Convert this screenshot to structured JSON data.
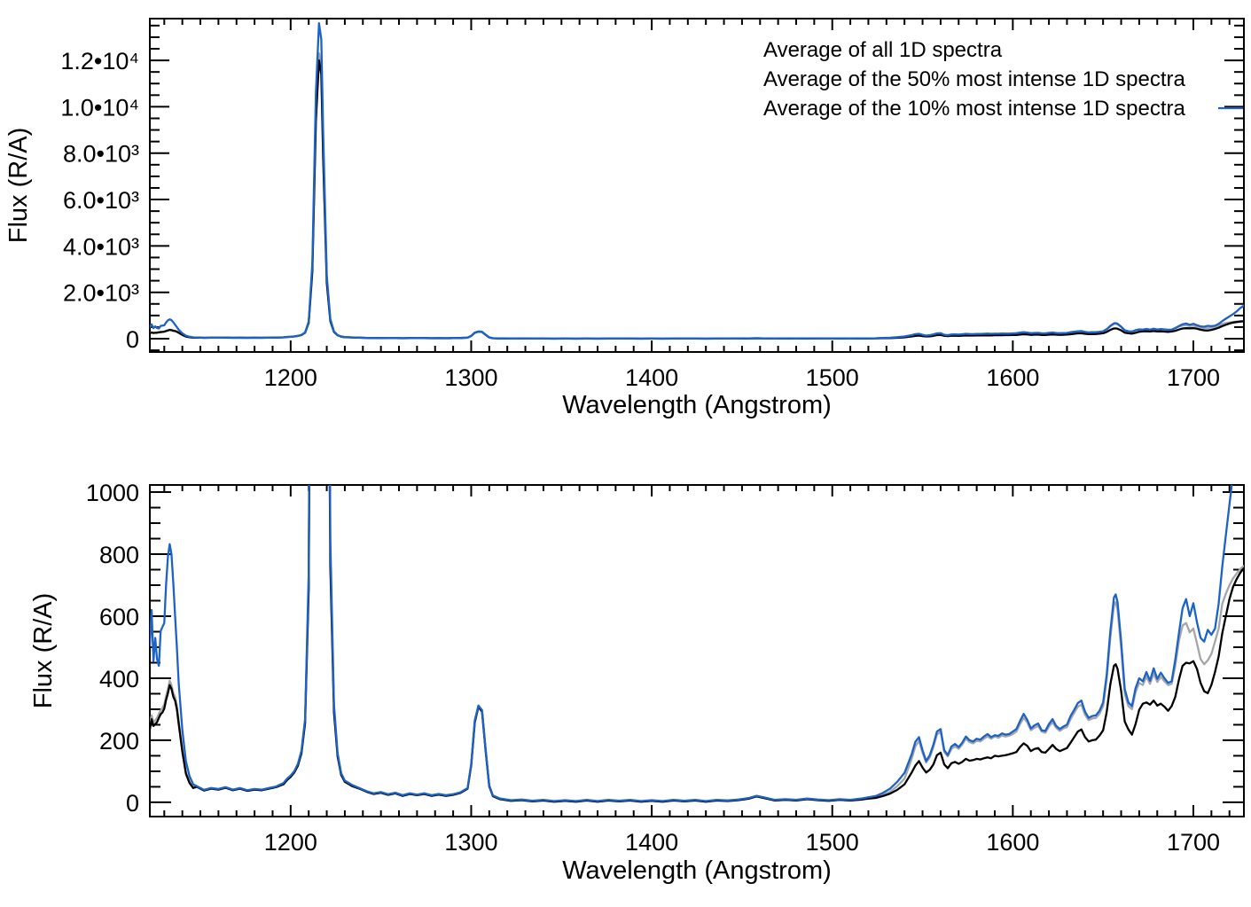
{
  "figure": {
    "background": "#ffffff"
  },
  "chart_data": {
    "type": "line",
    "title": "",
    "xlabel": "Wavelength (Angstrom)",
    "ylabel": "Flux (R/A)",
    "legend_position": "top-right-inside",
    "grid": false,
    "x_ticks": [
      1200,
      1300,
      1400,
      1500,
      1600,
      1700
    ],
    "x_minor_step": 10,
    "series": [
      {
        "name": "Average of all 1D spectra",
        "color": "#000000"
      },
      {
        "name": "Average of the 50% most intense 1D spectra",
        "color": "#a6a6a6"
      },
      {
        "name": "Average of the 10% most intense 1D spectra",
        "color": "#1b63c6"
      }
    ],
    "plots": [
      {
        "name": "full-scale-panel",
        "x_range": [
          1122,
          1728
        ],
        "y_range": [
          -573,
          13800
        ],
        "y_tick_values": [
          0,
          2000,
          4000,
          6000,
          8000,
          10000,
          12000
        ],
        "y_tick_labels": [
          "0",
          "2.0•10³",
          "4.0•10³",
          "6.0•10³",
          "8.0•10³",
          "1.0•10⁴",
          "1.2•10⁴"
        ],
        "y_minor_step": 500
      },
      {
        "name": "zoomed-panel",
        "x_range": [
          1122,
          1728
        ],
        "y_range": [
          -46,
          1023
        ],
        "y_tick_values": [
          0,
          200,
          400,
          600,
          800,
          1000
        ],
        "y_tick_labels": [
          "0",
          "200",
          "400",
          "600",
          "800",
          "1000"
        ],
        "y_minor_step": 50
      }
    ],
    "points_columns": [
      "wavelength_angstrom",
      "avg_all",
      "avg_50pct",
      "avg_10pct"
    ],
    "points": [
      [
        1120,
        225,
        240,
        590
      ],
      [
        1121,
        250,
        262,
        645
      ],
      [
        1122,
        235,
        250,
        505
      ],
      [
        1123,
        268,
        280,
        620
      ],
      [
        1124,
        246,
        258,
        455
      ],
      [
        1125,
        252,
        264,
        530
      ],
      [
        1126,
        258,
        272,
        462
      ],
      [
        1127,
        272,
        286,
        440
      ],
      [
        1128,
        284,
        296,
        552
      ],
      [
        1129,
        290,
        304,
        566
      ],
      [
        1130,
        302,
        316,
        578
      ],
      [
        1131,
        330,
        342,
        700
      ],
      [
        1132,
        352,
        366,
        792
      ],
      [
        1133,
        378,
        392,
        832
      ],
      [
        1134,
        366,
        378,
        800
      ],
      [
        1135,
        340,
        352,
        706
      ],
      [
        1136,
        328,
        340,
        600
      ],
      [
        1137,
        300,
        312,
        500
      ],
      [
        1138,
        252,
        262,
        382
      ],
      [
        1140,
        162,
        170,
        232
      ],
      [
        1142,
        92,
        98,
        132
      ],
      [
        1144,
        62,
        66,
        84
      ],
      [
        1146,
        46,
        50,
        58
      ],
      [
        1148,
        50,
        50,
        52
      ],
      [
        1152,
        38,
        38,
        40
      ],
      [
        1156,
        44,
        44,
        46
      ],
      [
        1160,
        41,
        41,
        43
      ],
      [
        1164,
        47,
        47,
        49
      ],
      [
        1168,
        39,
        39,
        41
      ],
      [
        1172,
        44,
        44,
        46
      ],
      [
        1176,
        37,
        37,
        39
      ],
      [
        1180,
        41,
        41,
        43
      ],
      [
        1184,
        39,
        39,
        41
      ],
      [
        1188,
        44,
        44,
        46
      ],
      [
        1192,
        49,
        49,
        51
      ],
      [
        1196,
        58,
        58,
        62
      ],
      [
        1198,
        72,
        72,
        76
      ],
      [
        1200,
        82,
        82,
        86
      ],
      [
        1202,
        96,
        96,
        100
      ],
      [
        1204,
        118,
        118,
        124
      ],
      [
        1206,
        158,
        158,
        166
      ],
      [
        1208,
        255,
        255,
        268
      ],
      [
        1210,
        690,
        700,
        740
      ],
      [
        1212,
        2900,
        3000,
        3250
      ],
      [
        1214,
        9400,
        9700,
        10600
      ],
      [
        1215.7,
        12000,
        12300,
        13600
      ],
      [
        1217,
        11400,
        11700,
        12900
      ],
      [
        1218,
        7800,
        8000,
        8900
      ],
      [
        1220,
        2400,
        2450,
        2700
      ],
      [
        1222,
        760,
        780,
        840
      ],
      [
        1224,
        290,
        295,
        315
      ],
      [
        1226,
        148,
        150,
        158
      ],
      [
        1228,
        88,
        90,
        94
      ],
      [
        1230,
        66,
        68,
        70
      ],
      [
        1234,
        52,
        54,
        56
      ],
      [
        1238,
        44,
        46,
        46
      ],
      [
        1242,
        34,
        34,
        36
      ],
      [
        1246,
        27,
        27,
        29
      ],
      [
        1250,
        31,
        31,
        33
      ],
      [
        1254,
        24,
        24,
        26
      ],
      [
        1258,
        29,
        29,
        31
      ],
      [
        1262,
        21,
        21,
        23
      ],
      [
        1266,
        27,
        27,
        29
      ],
      [
        1270,
        23,
        23,
        25
      ],
      [
        1274,
        27,
        27,
        29
      ],
      [
        1278,
        21,
        21,
        23
      ],
      [
        1282,
        25,
        25,
        27
      ],
      [
        1286,
        21,
        21,
        23
      ],
      [
        1290,
        24,
        24,
        26
      ],
      [
        1294,
        30,
        30,
        32
      ],
      [
        1298,
        44,
        44,
        46
      ],
      [
        1300,
        120,
        120,
        124
      ],
      [
        1302,
        258,
        258,
        264
      ],
      [
        1304,
        308,
        308,
        312
      ],
      [
        1306,
        292,
        292,
        297
      ],
      [
        1308,
        165,
        165,
        170
      ],
      [
        1310,
        52,
        52,
        55
      ],
      [
        1312,
        20,
        20,
        22
      ],
      [
        1316,
        10,
        10,
        12
      ],
      [
        1322,
        5,
        5,
        7
      ],
      [
        1328,
        7,
        7,
        9
      ],
      [
        1334,
        3,
        3,
        5
      ],
      [
        1340,
        6,
        6,
        8
      ],
      [
        1346,
        2,
        2,
        4
      ],
      [
        1352,
        5,
        5,
        7
      ],
      [
        1358,
        2,
        2,
        4
      ],
      [
        1364,
        6,
        6,
        8
      ],
      [
        1370,
        2,
        2,
        4
      ],
      [
        1376,
        6,
        6,
        8
      ],
      [
        1382,
        3,
        3,
        5
      ],
      [
        1388,
        6,
        6,
        8
      ],
      [
        1394,
        2,
        2,
        4
      ],
      [
        1400,
        5,
        5,
        7
      ],
      [
        1406,
        2,
        2,
        4
      ],
      [
        1412,
        6,
        6,
        8
      ],
      [
        1418,
        3,
        3,
        5
      ],
      [
        1424,
        6,
        6,
        8
      ],
      [
        1430,
        2,
        2,
        4
      ],
      [
        1436,
        6,
        6,
        8
      ],
      [
        1442,
        4,
        4,
        6
      ],
      [
        1448,
        7,
        7,
        9
      ],
      [
        1454,
        12,
        12,
        14
      ],
      [
        1458,
        19,
        19,
        21
      ],
      [
        1462,
        14,
        14,
        16
      ],
      [
        1468,
        6,
        6,
        8
      ],
      [
        1474,
        8,
        8,
        10
      ],
      [
        1480,
        6,
        6,
        8
      ],
      [
        1486,
        10,
        10,
        12
      ],
      [
        1492,
        7,
        7,
        9
      ],
      [
        1498,
        5,
        5,
        7
      ],
      [
        1504,
        8,
        8,
        10
      ],
      [
        1510,
        6,
        6,
        8
      ],
      [
        1516,
        9,
        9,
        12
      ],
      [
        1520,
        12,
        13,
        16
      ],
      [
        1524,
        14,
        16,
        20
      ],
      [
        1528,
        20,
        24,
        30
      ],
      [
        1532,
        28,
        34,
        44
      ],
      [
        1536,
        40,
        52,
        66
      ],
      [
        1540,
        58,
        76,
        95
      ],
      [
        1544,
        96,
        140,
        155
      ],
      [
        1546,
        118,
        180,
        195
      ],
      [
        1548,
        133,
        198,
        210
      ],
      [
        1550,
        112,
        160,
        168
      ],
      [
        1552,
        96,
        128,
        133
      ],
      [
        1554,
        105,
        145,
        152
      ],
      [
        1556,
        122,
        178,
        186
      ],
      [
        1558,
        152,
        218,
        228
      ],
      [
        1560,
        160,
        228,
        236
      ],
      [
        1562,
        122,
        162,
        168
      ],
      [
        1564,
        110,
        148,
        152
      ],
      [
        1566,
        126,
        172,
        180
      ],
      [
        1568,
        130,
        180,
        188
      ],
      [
        1570,
        124,
        172,
        178
      ],
      [
        1572,
        130,
        186,
        192
      ],
      [
        1574,
        140,
        205,
        212
      ],
      [
        1576,
        134,
        194,
        200
      ],
      [
        1578,
        136,
        190,
        196
      ],
      [
        1580,
        140,
        198,
        205
      ],
      [
        1582,
        138,
        196,
        202
      ],
      [
        1584,
        142,
        205,
        212
      ],
      [
        1586,
        145,
        212,
        220
      ],
      [
        1588,
        142,
        205,
        210
      ],
      [
        1590,
        150,
        212,
        216
      ],
      [
        1592,
        148,
        208,
        214
      ],
      [
        1594,
        150,
        215,
        222
      ],
      [
        1596,
        152,
        212,
        218
      ],
      [
        1598,
        155,
        215,
        220
      ],
      [
        1600,
        158,
        220,
        228
      ],
      [
        1602,
        162,
        228,
        236
      ],
      [
        1604,
        178,
        252,
        262
      ],
      [
        1606,
        190,
        272,
        285
      ],
      [
        1608,
        182,
        258,
        266
      ],
      [
        1610,
        165,
        232,
        238
      ],
      [
        1612,
        172,
        240,
        248
      ],
      [
        1614,
        175,
        246,
        254
      ],
      [
        1616,
        162,
        228,
        232
      ],
      [
        1618,
        160,
        224,
        230
      ],
      [
        1620,
        172,
        244,
        252
      ],
      [
        1622,
        185,
        258,
        268
      ],
      [
        1624,
        172,
        240,
        246
      ],
      [
        1626,
        165,
        230,
        236
      ],
      [
        1628,
        170,
        238,
        244
      ],
      [
        1630,
        175,
        242,
        250
      ],
      [
        1632,
        192,
        268,
        278
      ],
      [
        1634,
        210,
        288,
        298
      ],
      [
        1636,
        228,
        308,
        320
      ],
      [
        1638,
        235,
        315,
        328
      ],
      [
        1640,
        210,
        282,
        292
      ],
      [
        1642,
        196,
        265,
        272
      ],
      [
        1644,
        200,
        270,
        278
      ],
      [
        1646,
        202,
        272,
        280
      ],
      [
        1648,
        215,
        285,
        295
      ],
      [
        1650,
        232,
        310,
        322
      ],
      [
        1652,
        290,
        395,
        410
      ],
      [
        1654,
        380,
        530,
        550
      ],
      [
        1656,
        440,
        635,
        660
      ],
      [
        1657,
        445,
        645,
        670
      ],
      [
        1658,
        430,
        620,
        645
      ],
      [
        1660,
        360,
        500,
        520
      ],
      [
        1662,
        260,
        350,
        365
      ],
      [
        1664,
        235,
        310,
        322
      ],
      [
        1666,
        218,
        300,
        310
      ],
      [
        1668,
        252,
        355,
        368
      ],
      [
        1670,
        298,
        385,
        400
      ],
      [
        1672,
        318,
        378,
        390
      ],
      [
        1674,
        322,
        405,
        420
      ],
      [
        1676,
        315,
        382,
        392
      ],
      [
        1678,
        328,
        415,
        432
      ],
      [
        1680,
        312,
        388,
        398
      ],
      [
        1682,
        318,
        405,
        418
      ],
      [
        1684,
        308,
        390,
        400
      ],
      [
        1686,
        295,
        378,
        385
      ],
      [
        1688,
        310,
        382,
        390
      ],
      [
        1690,
        340,
        440,
        460
      ],
      [
        1692,
        395,
        520,
        545
      ],
      [
        1694,
        440,
        570,
        625
      ],
      [
        1696,
        450,
        578,
        655
      ],
      [
        1698,
        448,
        548,
        600
      ],
      [
        1700,
        455,
        560,
        642
      ],
      [
        1702,
        430,
        512,
        580
      ],
      [
        1704,
        385,
        462,
        530
      ],
      [
        1706,
        358,
        445,
        518
      ],
      [
        1708,
        352,
        458,
        556
      ],
      [
        1710,
        378,
        478,
        540
      ],
      [
        1712,
        420,
        518,
        560
      ],
      [
        1714,
        470,
        560,
        640
      ],
      [
        1716,
        545,
        640,
        760
      ],
      [
        1718,
        600,
        672,
        860
      ],
      [
        1720,
        655,
        700,
        960
      ],
      [
        1722,
        695,
        722,
        1060
      ],
      [
        1724,
        720,
        738,
        1180
      ],
      [
        1726,
        740,
        752,
        1320
      ],
      [
        1728,
        755,
        762,
        1430
      ]
    ]
  }
}
